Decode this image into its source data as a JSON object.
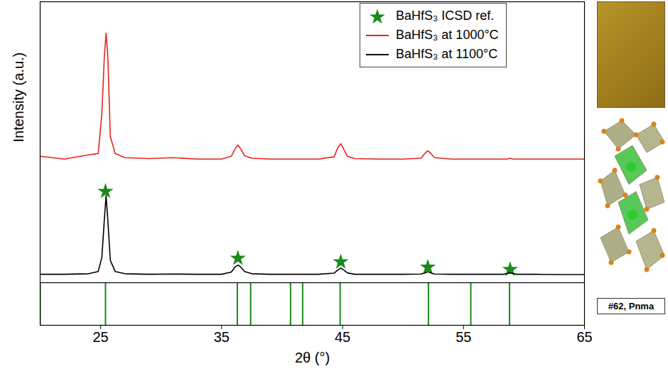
{
  "chart_data": [
    {
      "type": "line",
      "y_label": "Intensity (a.u.)",
      "xlim": [
        20,
        65
      ],
      "ylim": [
        0,
        100
      ],
      "tick_labels": false,
      "legend": "top-right",
      "x": [
        20,
        22,
        24,
        24.8,
        25.1,
        25.3,
        25.45,
        25.6,
        25.8,
        26.2,
        27,
        29,
        31,
        33,
        35,
        35.8,
        36.1,
        36.35,
        36.6,
        36.9,
        37.5,
        39,
        41,
        43,
        44.3,
        44.6,
        44.85,
        45.1,
        45.4,
        46,
        48,
        50,
        51.5,
        51.8,
        52.05,
        52.3,
        52.6,
        54,
        56,
        58.3,
        58.6,
        58.85,
        59.1,
        59.4,
        61,
        63,
        65
      ],
      "series": [
        {
          "name": "BaHfS₃ ICSD ref.",
          "type": "scatter",
          "marker": "star",
          "color": "#1a8a1a",
          "x": [
            25.4,
            36.35,
            44.85,
            52.05,
            58.85
          ],
          "values": [
            32.5,
            8.7,
            7.4,
            5.5,
            4.7
          ]
        },
        {
          "name": "BaHfS₃ at 1000°C",
          "color": "#e8231e",
          "values": [
            45,
            44,
            45.5,
            46,
            60,
            80,
            88.8,
            80,
            52,
            46,
            44.5,
            44.2,
            44.5,
            44,
            44,
            45,
            47.5,
            49,
            47.5,
            45.2,
            44.3,
            44,
            44,
            44,
            44.8,
            48,
            49.5,
            47.5,
            45,
            44.2,
            44,
            44,
            44.3,
            46,
            47,
            46,
            44.5,
            44,
            44,
            44,
            44,
            44.3,
            44,
            44,
            44,
            44,
            44
          ]
        },
        {
          "name": "BaHfS₃ at 1100°C",
          "color": "#000000",
          "values": [
            3,
            3,
            3.2,
            4,
            9,
            22,
            31,
            22,
            8,
            4,
            3.2,
            3,
            3.1,
            3,
            3,
            3.8,
            5.5,
            6.3,
            5.5,
            4,
            3.2,
            3,
            3,
            3,
            3.4,
            4.5,
            5.2,
            4.5,
            3.5,
            3,
            3,
            3,
            3.1,
            3.5,
            3.9,
            3.5,
            3.1,
            3,
            3,
            3,
            3.3,
            3.5,
            3.3,
            3,
            3,
            2.9,
            2.9
          ]
        }
      ]
    },
    {
      "type": "stick",
      "x_label": "2θ (°)",
      "xlim": [
        20,
        65
      ],
      "xticks": [
        25,
        35,
        45,
        55,
        65
      ],
      "ylim": [
        0,
        1
      ],
      "tick_labels": "x",
      "series": [
        {
          "color": "#1a8a1a",
          "x": [
            20.0,
            25.4,
            36.3,
            37.4,
            40.7,
            41.7,
            44.8,
            52.1,
            55.6,
            58.8
          ],
          "values": [
            1,
            1,
            1,
            1,
            1,
            1,
            1,
            1,
            1,
            1
          ]
        }
      ]
    }
  ],
  "insets": {
    "structure_label": "#62, Pnma"
  }
}
